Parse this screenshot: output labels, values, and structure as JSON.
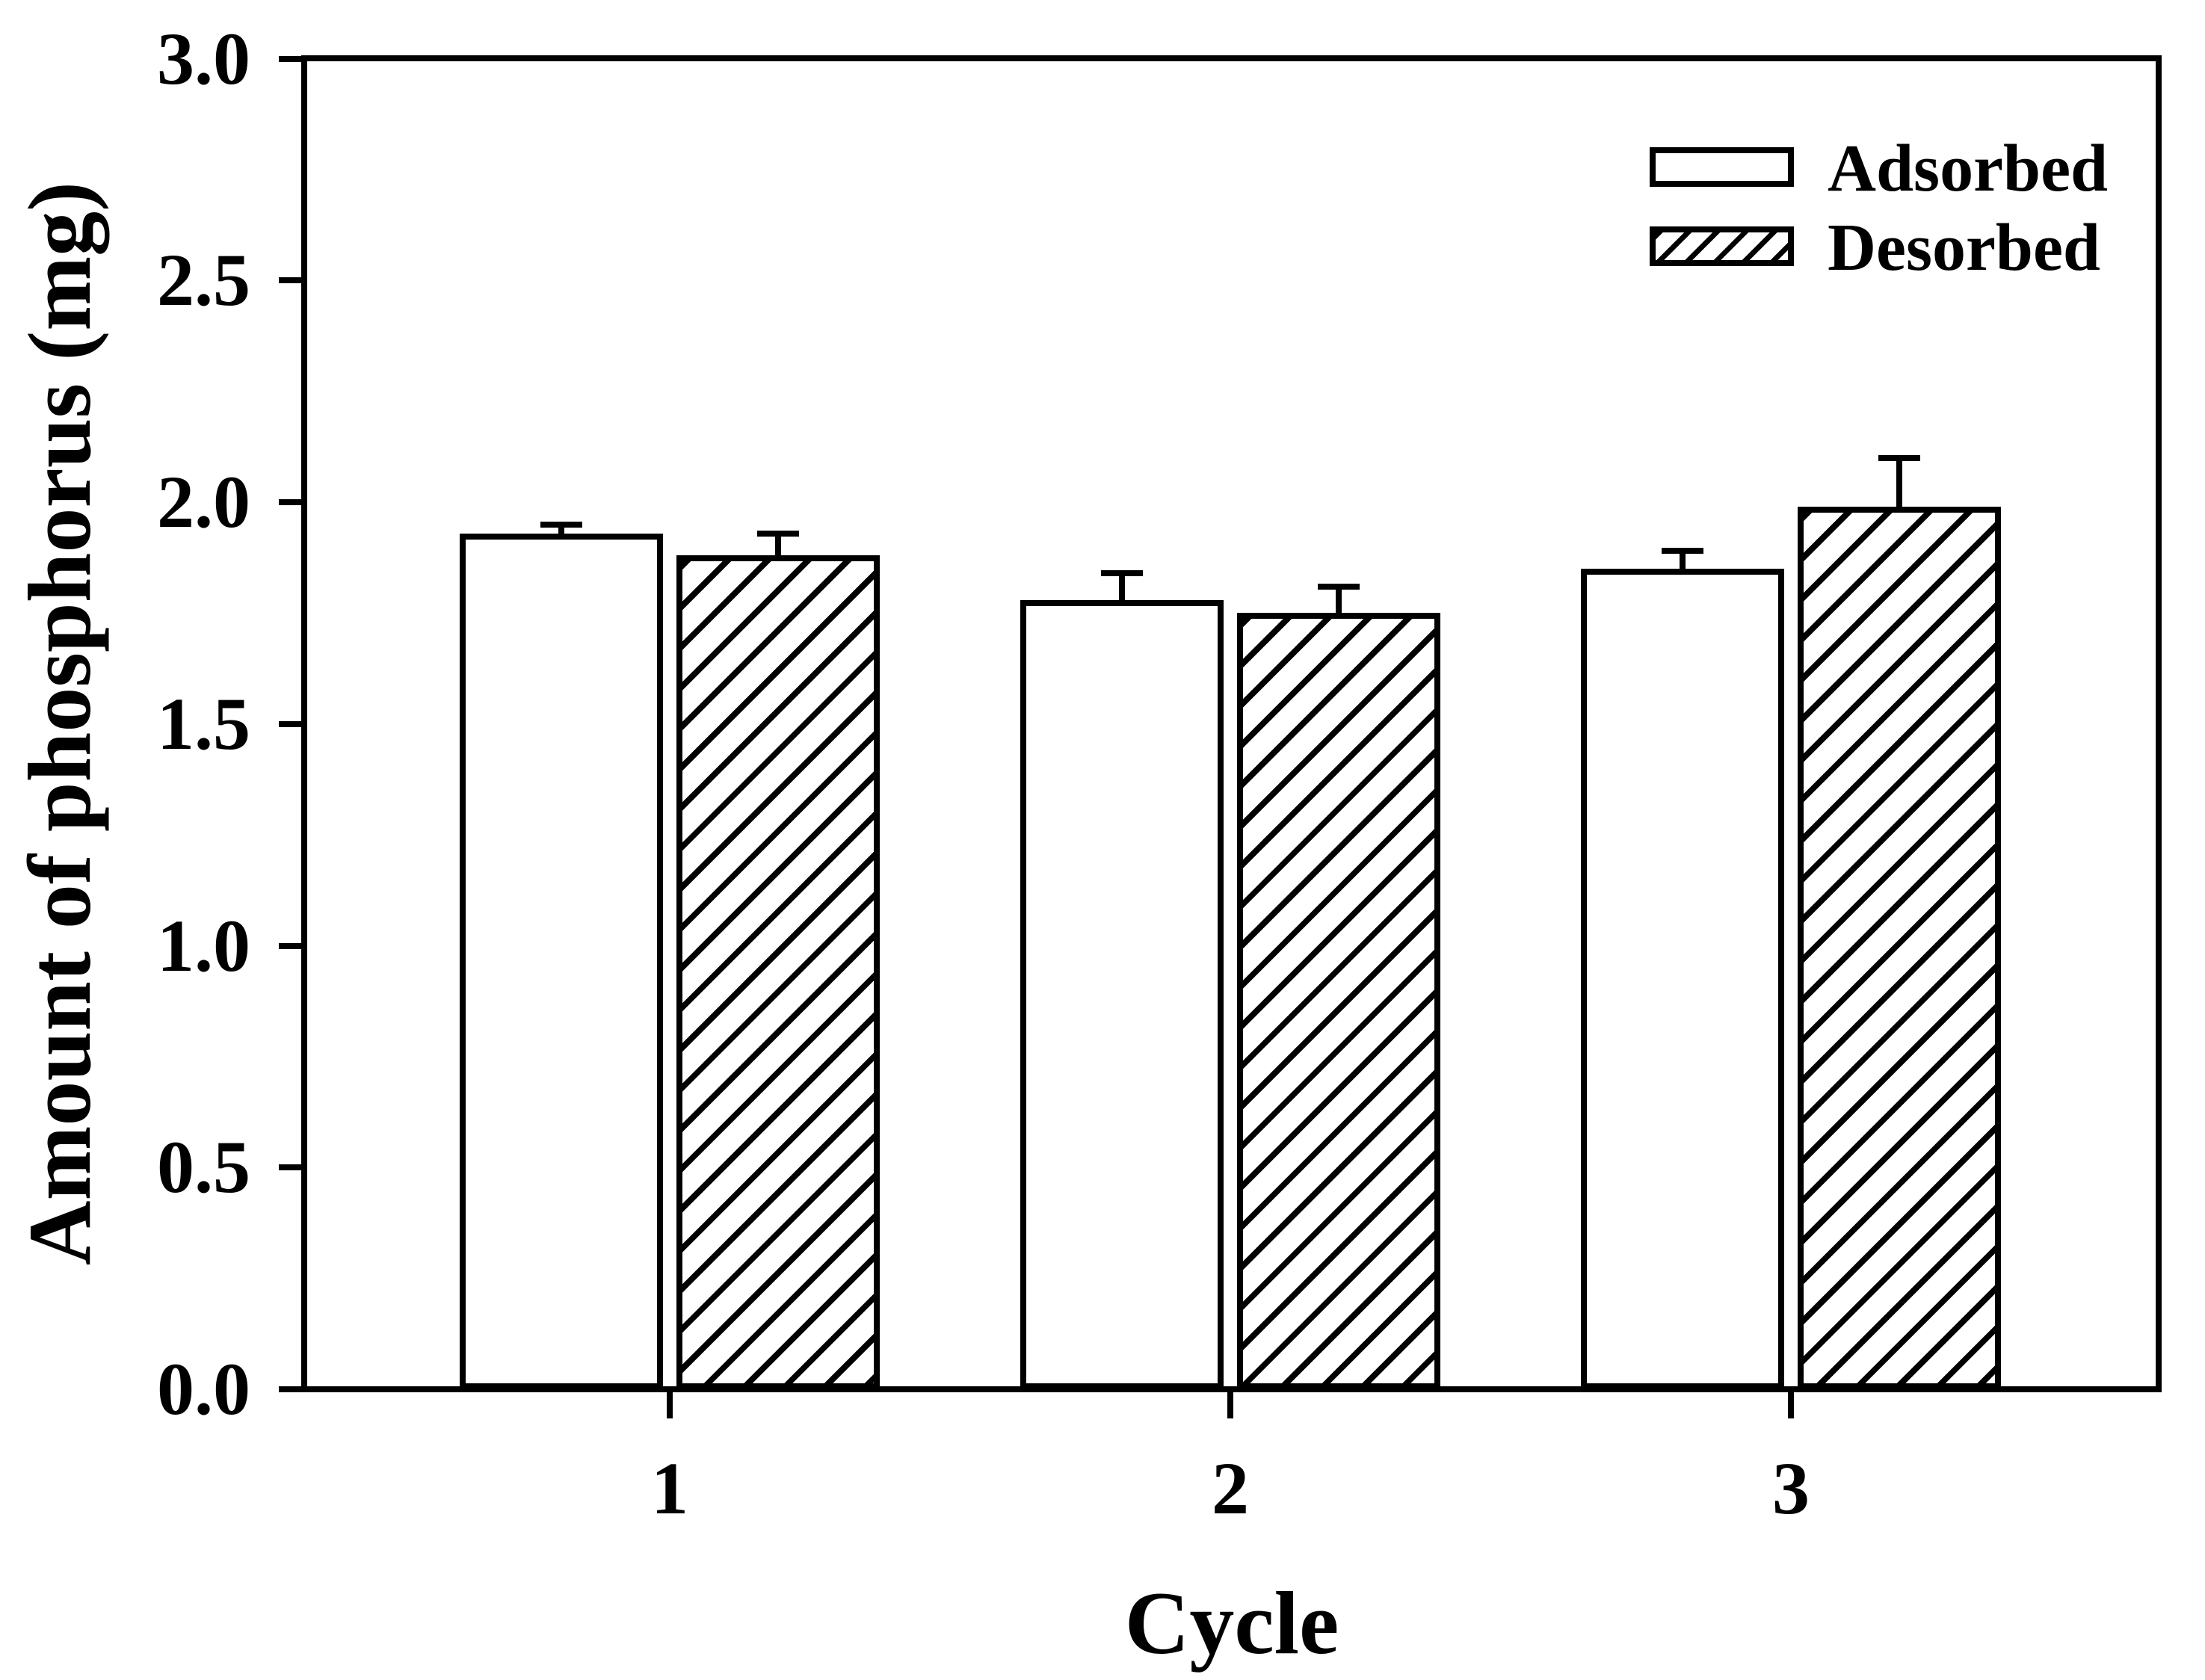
{
  "figure": {
    "background_color": "#ffffff",
    "foreground_color": "#000000"
  },
  "chart_data": {
    "type": "bar",
    "title": "",
    "xlabel": "Cycle",
    "ylabel": "Amount of phosphorus (mg)",
    "categories": [
      "1",
      "2",
      "3"
    ],
    "series": [
      {
        "name": "Adsorbed",
        "fill": "white",
        "values": [
          1.93,
          1.78,
          1.85
        ],
        "errors": [
          0.02,
          0.06,
          0.04
        ]
      },
      {
        "name": "Desorbed",
        "fill": "hatched",
        "values": [
          1.88,
          1.75,
          1.99
        ],
        "errors": [
          0.05,
          0.06,
          0.11
        ]
      }
    ],
    "ylim": [
      0.0,
      3.0
    ],
    "ytick_step": 0.5,
    "ytick_labels": [
      "0.0",
      "0.5",
      "1.0",
      "1.5",
      "2.0",
      "2.5",
      "3.0"
    ],
    "grid": false,
    "legend_position": "top-right",
    "error_bar_direction": "up"
  },
  "legend": {
    "items": [
      {
        "label": "Adsorbed",
        "swatch": "white-rectangle"
      },
      {
        "label": "Desorbed",
        "swatch": "hatched-rectangle"
      }
    ]
  }
}
